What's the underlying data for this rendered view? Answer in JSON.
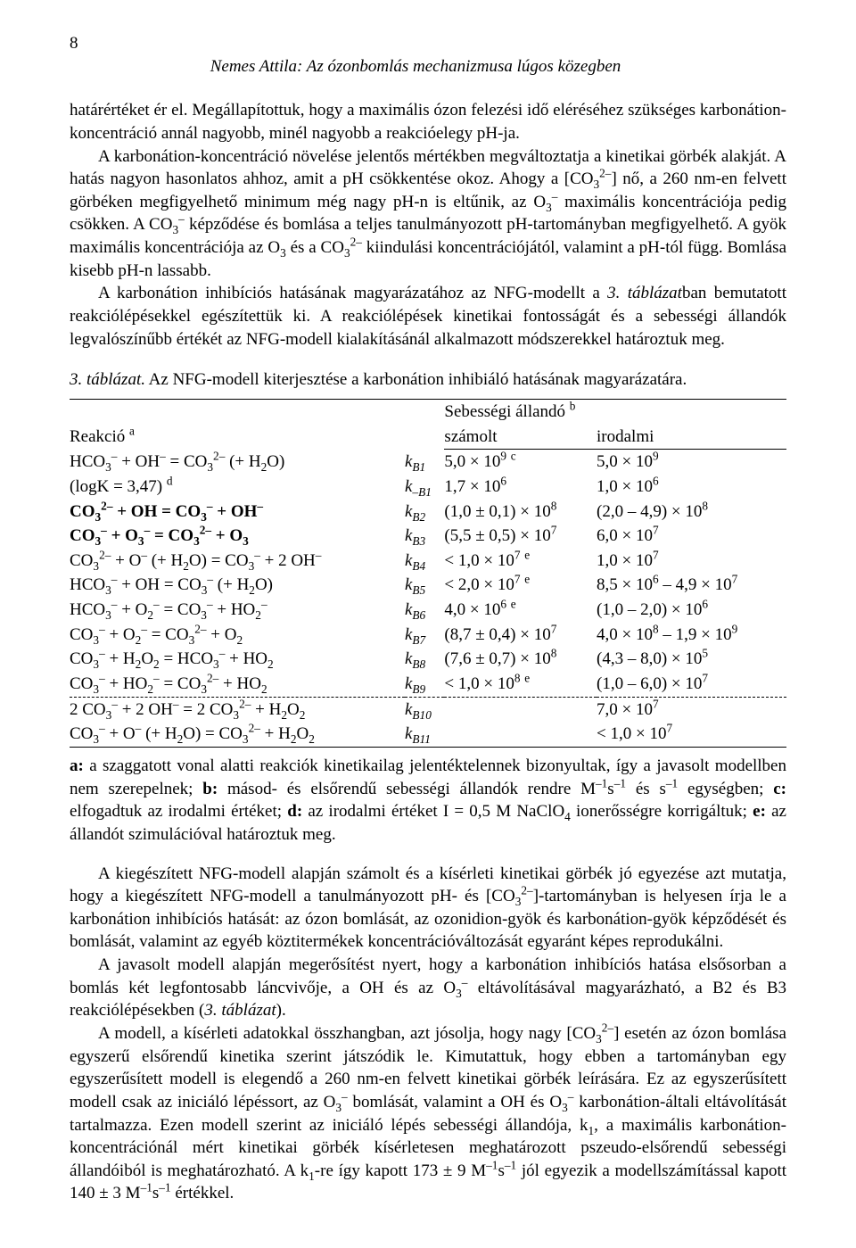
{
  "header": {
    "page_num": "8",
    "running_title": "Nemes Attila: Az ózonbomlás mechanizmusa lúgos közegben"
  },
  "para1": "határértéket ér el. Megállapítottuk, hogy a maximális ózon felezési idő eléréséhez szükséges karbonátion-koncentráció annál nagyobb, minél nagyobb a reakcióelegy pH-ja.",
  "para2_a": "A karbonátion-koncentráció növelése jelentős mértékben megváltoztatja a kinetikai görbék alakját. A hatás nagyon hasonlatos ahhoz, amit a pH csökkentése okoz. Ahogy a [CO",
  "para2_b": "] nő, a 260 nm-en felvett görbéken megfigyelhető minimum még nagy pH-n is eltűnik, az O",
  "para2_c": " maximális koncentrációja pedig csökken. A CO",
  "para2_d": " képződése és bomlása a teljes tanulmányozott pH-tartományban megfigyelhető. A gyök maximális koncentrációja az O",
  "para2_e": " és a CO",
  "para2_f": " kiindulási koncentrációjától, valamint a pH-tól függ. Bomlása kisebb pH-n lassabb.",
  "para3_a": "A karbonátion inhibíciós hatásának magyarázatához az NFG-modellt a ",
  "para3_i": "3. táblázat",
  "para3_b": "ban bemutatott reakciólépésekkel egészítettük ki. A reakciólépések kinetikai fontosságát és a sebességi állandók legvalószínűbb értékét az NFG-modell kialakításánál alkalmazott módszerekkel határoztuk meg.",
  "table_caption_i": "3. táblázat.",
  "table_caption": " Az NFG-modell kiterjesztése a karbonátion inhibiáló hatásának magyarázatára.",
  "table": {
    "head_reaction": "Reakció ",
    "head_reaction_sup": "a",
    "head_rate": "Sebességi állandó ",
    "head_rate_sup": "b",
    "head_calc": "számolt",
    "head_lit": "irodalmi",
    "rows": [
      {
        "rx": "HCO₃⁻ + OH⁻ = CO₃²⁻ (+ H₂O)",
        "k": "k_B1",
        "calc": "5,0 × 10⁹ ᶜ",
        "lit": "5,0 × 10⁹"
      },
      {
        "rx": "   (logK = 3,47) ᵈ",
        "k": "k_–B1",
        "calc": "1,7 × 10⁶",
        "lit": "1,0 × 10⁶"
      },
      {
        "rx": "CO₃²⁻ + OH = CO₃⁻ + OH⁻",
        "bold": true,
        "k": "k_B2",
        "calc": "(1,0 ± 0,1) × 10⁸",
        "lit": "(2,0 – 4,9) × 10⁸"
      },
      {
        "rx": "CO₃⁻ + O₃⁻ = CO₃²⁻ + O₃",
        "bold": true,
        "k": "k_B3",
        "calc": "(5,5 ± 0,5) × 10⁷",
        "lit": "6,0 × 10⁷"
      },
      {
        "rx": "CO₃²⁻ + O⁻ (+ H₂O) = CO₃⁻ + 2 OH⁻",
        "k": "k_B4",
        "calc": "< 1,0 × 10⁷ ᵉ",
        "lit": "1,0 × 10⁷"
      },
      {
        "rx": "HCO₃⁻ + OH = CO₃⁻ (+ H₂O)",
        "k": "k_B5",
        "calc": "< 2,0 × 10⁷ ᵉ",
        "lit": "8,5 × 10⁶ – 4,9 × 10⁷"
      },
      {
        "rx": "HCO₃⁻ + O₂⁻ = CO₃⁻ + HO₂⁻",
        "k": "k_B6",
        "calc": "4,0 × 10⁶ ᵉ",
        "lit": "(1,0 – 2,0) × 10⁶"
      },
      {
        "rx": "CO₃⁻ + O₂⁻ = CO₃²⁻ + O₂",
        "k": "k_B7",
        "calc": "(8,7 ± 0,4) × 10⁷",
        "lit": "4,0 × 10⁸ – 1,9 × 10⁹"
      },
      {
        "rx": "CO₃⁻ + H₂O₂ = HCO₃⁻ + HO₂",
        "k": "k_B8",
        "calc": "(7,6 ± 0,7) × 10⁸",
        "lit": "(4,3 – 8,0) × 10⁵"
      },
      {
        "rx": "CO₃⁻ + HO₂⁻ = CO₃²⁻ + HO₂",
        "k": "k_B9",
        "calc": "< 1,0 × 10⁸ ᵉ",
        "lit": "(1,0 – 6,0) × 10⁷"
      }
    ],
    "dashed_rows": [
      {
        "rx": "2 CO₃⁻ + 2 OH⁻ = 2 CO₃²⁻ + H₂O₂",
        "k": "k_B10",
        "calc": "",
        "lit": "7,0 × 10⁷"
      },
      {
        "rx": "CO₃⁻ + O⁻ (+ H₂O) = CO₃²⁻ + H₂O₂",
        "k": "k_B11",
        "calc": "",
        "lit": "< 1,0 × 10⁷"
      }
    ]
  },
  "notes": "a: a szaggatott vonal alatti reakciók kinetikailag jelentéktelennek bizonyultak, így a javasolt modellben nem szerepelnek; b: másod- és elsőrendű sebességi állandók rendre M⁻¹s⁻¹ és s⁻¹ egységben; c: elfogadtuk az irodalmi értéket; d: az irodalmi értéket I = 0,5 M NaClO₄ ionerősségre korrigáltuk; e: az állandót szimulációval határoztuk meg.",
  "para4": "A kiegészített NFG-modell alapján számolt és a kísérleti kinetikai görbék jó egyezése azt mutatja, hogy a kiegészített NFG-modell a tanulmányozott pH- és [CO₃²⁻]-tartományban is helyesen írja le a karbonátion inhibíciós hatását: az ózon bomlását, az ozonidion-gyök és karbonátion-gyök képződését és bomlását, valamint az egyéb köztitermékek koncentrációváltozását egyaránt képes reprodukálni.",
  "para5": "A javasolt modell alapján megerősítést nyert, hogy a karbonátion inhibíciós hatása elsősorban a bomlás két legfontosabb láncvivője, a OH és az O₃⁻ eltávolításával magyarázható, a B2 és B3 reakciólépésekben (3. táblázat).",
  "para6": "A modell, a kísérleti adatokkal összhangban, azt jósolja, hogy nagy [CO₃²⁻] esetén az ózon bomlása egyszerű elsőrendű kinetika szerint játszódik le. Kimutattuk, hogy ebben a tartományban egy egyszerűsített modell is elegendő a 260 nm-en felvett kinetikai görbék leírására. Ez az egyszerűsített modell csak az iniciáló lépéssort, az O₃⁻ bomlását, valamint a OH és O₃⁻ karbonátion-általi eltávolítását tartalmazza. Ezen modell szerint az iniciáló lépés sebességi állandója, k₁, a maximális karbonátion-koncentrációnál mért kinetikai görbék kísérletesen meghatározott pszeudo-elsőrendű sebességi állandóiból is meghatározható. A k₁-re így kapott 173 ± 9 M⁻¹s⁻¹ jól egyezik a modellszámítással kapott 140 ± 3 M⁻¹s⁻¹ értékkel."
}
